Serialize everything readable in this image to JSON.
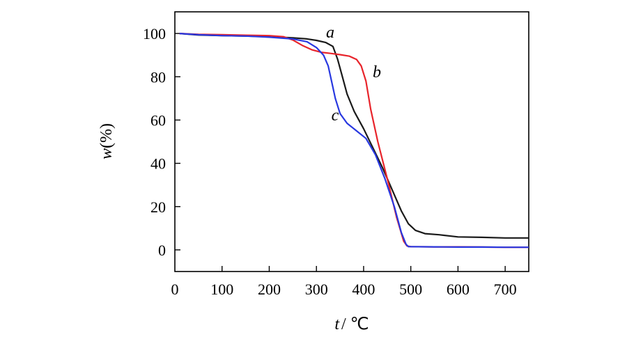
{
  "chart_data": {
    "type": "line",
    "title": "",
    "xlabel": {
      "var": "t",
      "unit": "/ ℃"
    },
    "ylabel": {
      "var": "w",
      "unit": "(%)"
    },
    "xlim": [
      0,
      750
    ],
    "ylim": [
      -10,
      110
    ],
    "xticks": [
      0,
      100,
      200,
      300,
      400,
      500,
      600,
      700
    ],
    "yticks": [
      0,
      20,
      40,
      60,
      80,
      100
    ],
    "grid": false,
    "series": [
      {
        "name": "a",
        "color": "#1a1a1a",
        "x": [
          10,
          50,
          100,
          150,
          200,
          250,
          280,
          300,
          320,
          335,
          345,
          355,
          365,
          380,
          400,
          420,
          440,
          460,
          480,
          495,
          510,
          530,
          560,
          600,
          650,
          700,
          750
        ],
        "y": [
          100,
          99.3,
          99,
          98.8,
          98.5,
          98,
          97.5,
          96.8,
          95.8,
          94,
          88,
          80,
          72,
          64,
          56,
          47,
          38,
          28,
          18,
          12,
          9,
          7.5,
          7,
          6,
          5.8,
          5.5,
          5.5
        ]
      },
      {
        "name": "b",
        "color": "#e8242b",
        "x": [
          10,
          50,
          100,
          150,
          200,
          230,
          250,
          270,
          290,
          310,
          330,
          350,
          370,
          385,
          395,
          405,
          415,
          430,
          450,
          470,
          485,
          492,
          500,
          550,
          600,
          650,
          700,
          750
        ],
        "y": [
          100,
          99.6,
          99.4,
          99.2,
          99,
          98.5,
          97,
          94.5,
          92.5,
          91.3,
          90.8,
          90.2,
          89.5,
          88,
          85,
          78,
          65,
          50,
          33,
          15,
          4,
          1.8,
          1.5,
          1.4,
          1.4,
          1.3,
          1.2,
          1.2
        ]
      },
      {
        "name": "c",
        "color": "#2838e0",
        "x": [
          10,
          50,
          100,
          150,
          200,
          250,
          280,
          300,
          315,
          325,
          332,
          340,
          350,
          365,
          385,
          405,
          425,
          445,
          465,
          480,
          490,
          495,
          500,
          550,
          600,
          650,
          700,
          750
        ],
        "y": [
          100,
          99.4,
          99,
          98.8,
          98.3,
          97.5,
          96.2,
          93.5,
          90,
          85,
          78,
          70,
          63,
          58.5,
          55,
          51.5,
          44,
          33,
          20,
          8,
          2.5,
          1.5,
          1.5,
          1.4,
          1.3,
          1.3,
          1.2,
          1.2
        ]
      }
    ],
    "annotations": [
      {
        "text": "a",
        "series": "a"
      },
      {
        "text": "b",
        "series": "b"
      },
      {
        "text": "c",
        "series": "c"
      }
    ]
  }
}
